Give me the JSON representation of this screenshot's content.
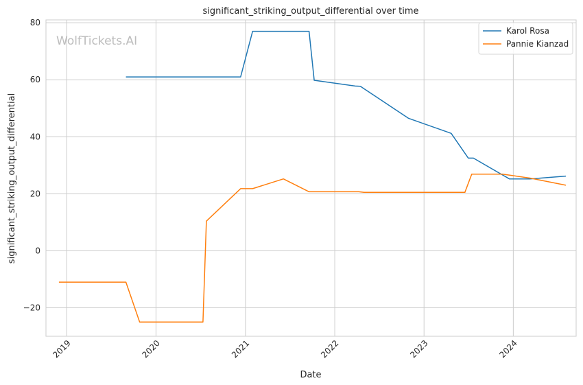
{
  "chart_data": {
    "type": "line",
    "title": "significant_striking_output_differential over time",
    "xlabel": "Date",
    "ylabel": "significant_striking_output_differential",
    "watermark": "WolfTickets.AI",
    "xlim": [
      "2018-10-08",
      "2024-09-14"
    ],
    "ylim": [
      -30,
      81
    ],
    "x_ticks": [
      "2019",
      "2020",
      "2021",
      "2022",
      "2023",
      "2024"
    ],
    "y_ticks": [
      -20,
      0,
      20,
      40,
      60,
      80
    ],
    "grid": true,
    "legend_position": "top-right",
    "series": [
      {
        "name": "Karol Rosa",
        "color": "#1f77b4",
        "points": [
          [
            "2019-08-31",
            61.0
          ],
          [
            "2020-12-12",
            61.0
          ],
          [
            "2021-01-30",
            77.0
          ],
          [
            "2021-09-18",
            77.0
          ],
          [
            "2021-10-09",
            59.8
          ],
          [
            "2022-03-26",
            57.8
          ],
          [
            "2022-04-16",
            57.7
          ],
          [
            "2022-10-29",
            46.5
          ],
          [
            "2023-04-22",
            41.2
          ],
          [
            "2023-07-01",
            32.5
          ],
          [
            "2023-07-22",
            32.5
          ],
          [
            "2023-12-16",
            25.2
          ],
          [
            "2024-03-09",
            25.2
          ],
          [
            "2024-08-03",
            26.2
          ]
        ]
      },
      {
        "name": "Pannie Kianzad",
        "color": "#ff7f0e",
        "points": [
          [
            "2018-11-30",
            -11.0
          ],
          [
            "2019-08-31",
            -11.0
          ],
          [
            "2019-10-26",
            -25.0
          ],
          [
            "2020-07-11",
            -25.0
          ],
          [
            "2020-07-25",
            10.4
          ],
          [
            "2020-12-12",
            21.8
          ],
          [
            "2021-01-30",
            21.8
          ],
          [
            "2021-06-05",
            25.2
          ],
          [
            "2021-09-18",
            20.7
          ],
          [
            "2022-04-09",
            20.7
          ],
          [
            "2022-04-30",
            20.5
          ],
          [
            "2023-06-17",
            20.5
          ],
          [
            "2023-07-15",
            26.9
          ],
          [
            "2023-11-18",
            26.9
          ],
          [
            "2024-03-09",
            25.5
          ],
          [
            "2024-08-03",
            23.0
          ]
        ]
      }
    ]
  }
}
